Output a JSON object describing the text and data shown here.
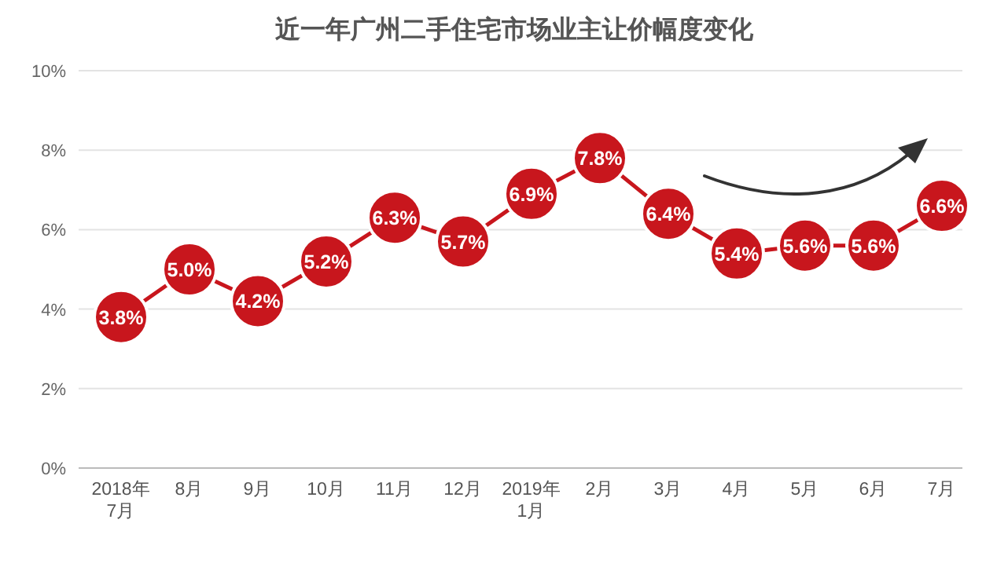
{
  "chart_data": {
    "type": "line",
    "title": "近一年广州二手住宅市场业主让价幅度变化",
    "categories": [
      "2018年\n7月",
      "8月",
      "9月",
      "10月",
      "11月",
      "12月",
      "2019年\n1月",
      "2月",
      "3月",
      "4月",
      "5月",
      "6月",
      "7月"
    ],
    "series": [
      {
        "color": "#c8161d",
        "values": [
          3.8,
          5.0,
          4.2,
          5.2,
          6.3,
          5.7,
          6.9,
          7.8,
          6.4,
          5.4,
          5.6,
          5.6,
          6.6
        ],
        "value_labels": [
          "3.8%",
          "5.0%",
          "4.2%",
          "5.2%",
          "6.3%",
          "5.7%",
          "6.9%",
          "7.8%",
          "6.4%",
          "5.4%",
          "5.6%",
          "5.6%",
          "6.6%"
        ]
      }
    ],
    "ylim": [
      0,
      10
    ],
    "yticks": [
      {
        "value": 0,
        "label": "0%"
      },
      {
        "value": 2,
        "label": "2%"
      },
      {
        "value": 4,
        "label": "4%"
      },
      {
        "value": 6,
        "label": "6%"
      },
      {
        "value": 8,
        "label": "8%"
      },
      {
        "value": 10,
        "label": "10%"
      }
    ],
    "grid": "y",
    "marker": "circle",
    "line_style": "solid"
  }
}
